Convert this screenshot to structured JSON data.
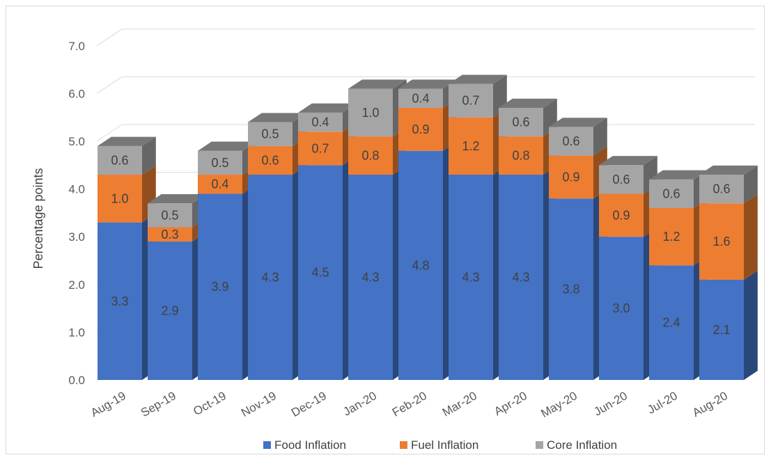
{
  "chart_data": {
    "type": "bar",
    "stacked": true,
    "three_d": true,
    "categories": [
      "Aug-19",
      "Sep-19",
      "Oct-19",
      "Nov-19",
      "Dec-19",
      "Jan-20",
      "Feb-20",
      "Mar-20",
      "Apr-20",
      "May-20",
      "Jun-20",
      "Jul-20",
      "Aug-20"
    ],
    "series": [
      {
        "name": "Food Inflation",
        "color": "#4472c4",
        "values": [
          3.3,
          2.9,
          3.9,
          4.3,
          4.5,
          4.3,
          4.8,
          4.3,
          4.3,
          3.8,
          3.0,
          2.4,
          2.1
        ]
      },
      {
        "name": "Fuel Inflation",
        "color": "#ed7d31",
        "values": [
          1.0,
          0.3,
          0.4,
          0.6,
          0.7,
          0.8,
          0.9,
          1.2,
          0.8,
          0.9,
          0.9,
          1.2,
          1.6
        ]
      },
      {
        "name": "Core Inflation",
        "color": "#a5a5a5",
        "values": [
          0.6,
          0.5,
          0.5,
          0.5,
          0.4,
          1.0,
          0.4,
          0.7,
          0.6,
          0.6,
          0.6,
          0.6,
          0.6
        ]
      }
    ],
    "data_labels": [
      [
        "3.3",
        "2.9",
        "3.9",
        "4.3",
        "4.5",
        "4.3",
        "4.8",
        "4.3",
        "4.3",
        "3.8",
        "3.0",
        "2.4",
        "2.1"
      ],
      [
        "1.0",
        "0.3",
        "0.4",
        "0.6",
        "0.7",
        "0.8",
        "0.9",
        "1.2",
        "0.8",
        "0.9",
        "0.9",
        "1.2",
        "1.6"
      ],
      [
        "0.6",
        "0.5",
        "0.5",
        "0.5",
        "0.4",
        "1.0",
        "0.4",
        "0.7",
        "0.6",
        "0.6",
        "0.6",
        "0.6",
        "0.6"
      ]
    ],
    "ylabel": "Percentage points",
    "xlabel": "",
    "ylim": [
      0,
      7
    ],
    "yticks": [
      "0.0",
      "1.0",
      "2.0",
      "3.0",
      "4.0",
      "5.0",
      "6.0",
      "7.0"
    ],
    "grid": true,
    "legend_position": "bottom"
  }
}
